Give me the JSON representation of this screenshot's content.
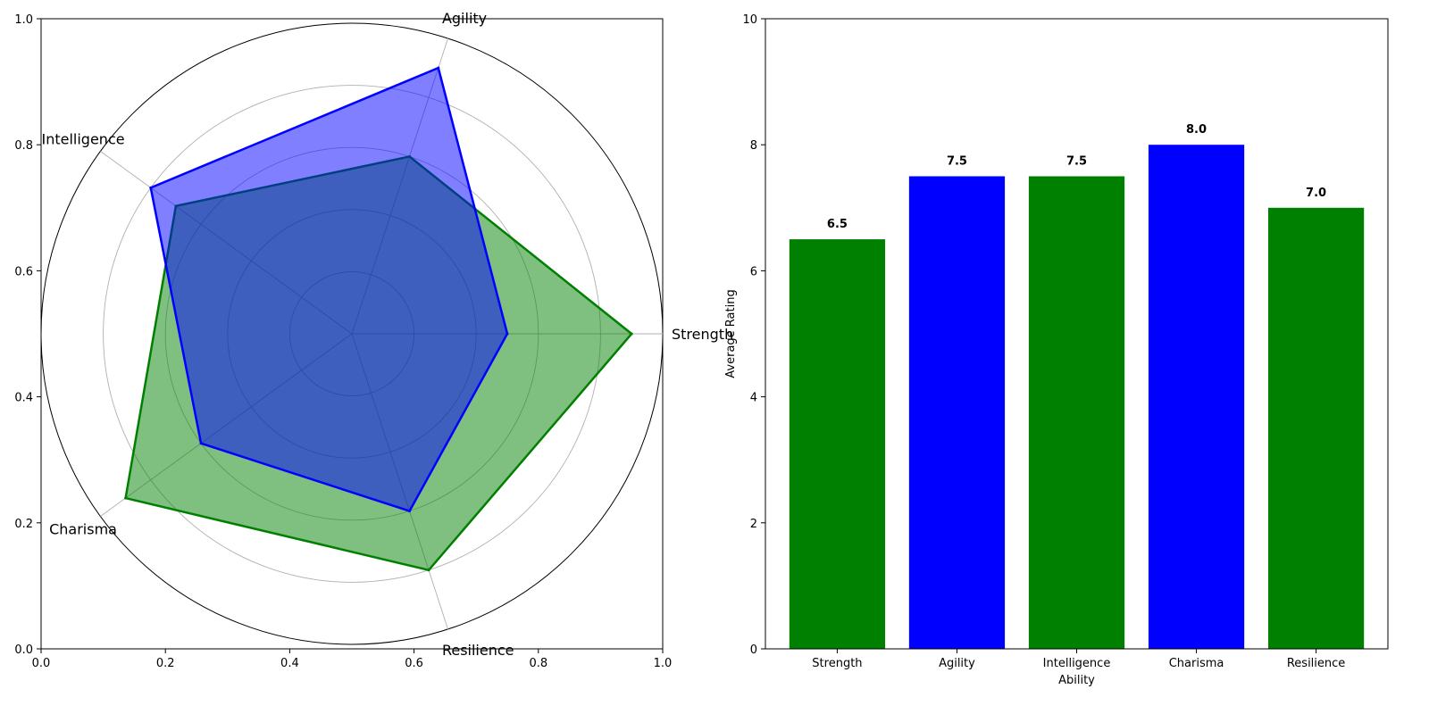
{
  "chart_data": [
    {
      "type": "radar",
      "categories": [
        "Strength",
        "Agility",
        "Intelligence",
        "Charisma",
        "Resilience"
      ],
      "series": [
        {
          "values": [
            9,
            6,
            7,
            9,
            8
          ],
          "color": "#008000"
        },
        {
          "values": [
            5,
            9,
            8,
            6,
            6
          ],
          "color": "#0000ff"
        }
      ],
      "rmax": 10,
      "rings": [
        2,
        4,
        6,
        8,
        10
      ],
      "frame_xticks": [
        "0.0",
        "0.2",
        "0.4",
        "0.6",
        "0.8",
        "1.0"
      ],
      "frame_yticks": [
        "0.0",
        "0.2",
        "0.4",
        "0.6",
        "0.8",
        "1.0"
      ],
      "grid": true
    },
    {
      "type": "bar",
      "categories": [
        "Strength",
        "Agility",
        "Intelligence",
        "Charisma",
        "Resilience"
      ],
      "values": [
        6.5,
        7.5,
        7.5,
        8.0,
        7.0
      ],
      "value_labels": [
        "6.5",
        "7.5",
        "7.5",
        "8.0",
        "7.0"
      ],
      "colors": [
        "#008000",
        "#0000ff",
        "#008000",
        "#0000ff",
        "#008000"
      ],
      "xlabel": "Ability",
      "ylabel": "Average Rating",
      "ylim": [
        0,
        10
      ],
      "yticks": [
        0,
        2,
        4,
        6,
        8,
        10
      ],
      "yticklabels": [
        "0",
        "2",
        "4",
        "6",
        "8",
        "10"
      ]
    }
  ]
}
